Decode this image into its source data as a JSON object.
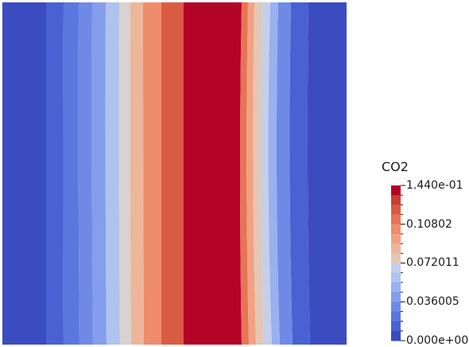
{
  "field": {
    "variable": "CO2",
    "band_colors": [
      "#3b4cc0",
      "#4961d2",
      "#5b76dd",
      "#6f8ae6",
      "#859eec",
      "#9ab0ef",
      "#b0c2ee",
      "#c5cfea",
      "#d6d3d0",
      "#e4c7b5",
      "#edb69b",
      "#f1a283",
      "#ee8c6c",
      "#e67456",
      "#d95b44",
      "#c73f33",
      "#b40426"
    ]
  },
  "legend": {
    "title": "CO2",
    "ticks": [
      {
        "label": "1.440e-01",
        "value": 0.144
      },
      {
        "label": "0.10802",
        "value": 0.10802
      },
      {
        "label": "0.072011",
        "value": 0.072011
      },
      {
        "label": "0.036005",
        "value": 0.036005
      },
      {
        "label": "0.000e+00",
        "value": 0.0
      }
    ],
    "range": [
      0.0,
      0.144
    ],
    "bands": 16
  }
}
